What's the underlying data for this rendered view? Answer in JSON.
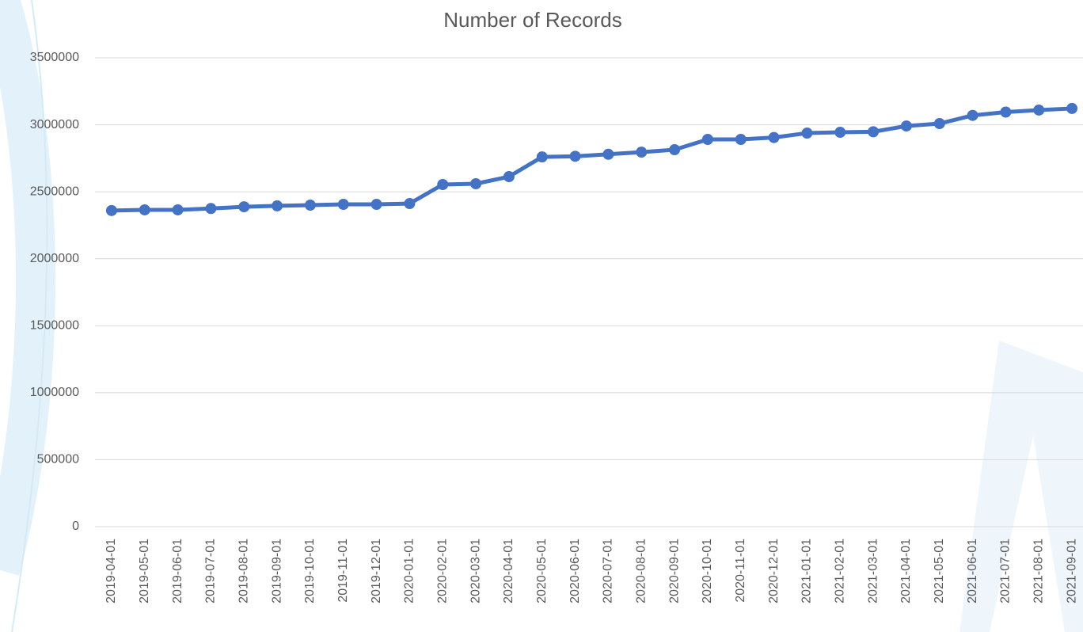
{
  "chart_data": {
    "type": "line",
    "title": "Number of Records",
    "categories": [
      "2019-04-01",
      "2019-05-01",
      "2019-06-01",
      "2019-07-01",
      "2019-08-01",
      "2019-09-01",
      "2019-10-01",
      "2019-11-01",
      "2019-12-01",
      "2020-01-01",
      "2020-02-01",
      "2020-03-01",
      "2020-04-01",
      "2020-05-01",
      "2020-06-01",
      "2020-07-01",
      "2020-08-01",
      "2020-09-01",
      "2020-10-01",
      "2020-11-01",
      "2020-12-01",
      "2021-01-01",
      "2021-02-01",
      "2021-03-01",
      "2021-04-01",
      "2021-05-01",
      "2021-06-01",
      "2021-07-01",
      "2021-08-01",
      "2021-09-01"
    ],
    "values": [
      2360000,
      2365000,
      2365000,
      2375000,
      2388000,
      2395000,
      2400000,
      2406000,
      2406000,
      2412000,
      2554000,
      2560000,
      2613000,
      2760000,
      2765000,
      2780000,
      2796000,
      2814000,
      2891000,
      2891000,
      2905000,
      2938000,
      2944000,
      2948000,
      2991000,
      3009000,
      3070000,
      3095000,
      3110000,
      3122000
    ],
    "color": "#4472c4",
    "ylim": [
      0,
      3500000
    ],
    "yticks": [
      0,
      500000,
      1000000,
      1500000,
      2000000,
      2500000,
      3000000,
      3500000
    ],
    "grid": true
  }
}
